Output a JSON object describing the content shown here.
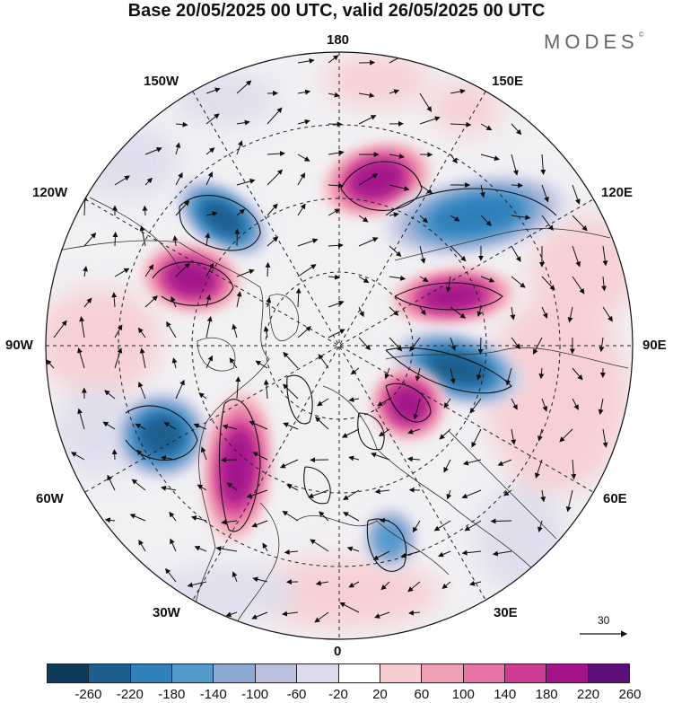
{
  "title": "Base 20/05/2025 00 UTC, valid 26/05/2025 00 UTC",
  "brand": "MODES",
  "brand_mark": "©",
  "longitude_labels": {
    "lon180": "180",
    "lon150w": "150W",
    "lon150e": "150E",
    "lon120w": "120W",
    "lon120e": "120E",
    "lon90w": "90W",
    "lon90e": "90E",
    "lon60w": "60W",
    "lon60e": "60E",
    "lon30w": "30W",
    "lon30e": "30E",
    "lon0": "0"
  },
  "reference_vector": "30",
  "colorbar": {
    "colors": [
      "#0c3b5c",
      "#1d5f8f",
      "#2f80bb",
      "#5399cc",
      "#8ba9d3",
      "#b8c0dd",
      "#dcdced",
      "#ffffff",
      "#f7cdd0",
      "#f0a0b4",
      "#e874a5",
      "#cf3c94",
      "#a3138b",
      "#5c0f7a"
    ],
    "ticks": [
      "-260",
      "-220",
      "-180",
      "-140",
      "-100",
      "-60",
      "-20",
      "20",
      "60",
      "100",
      "140",
      "180",
      "220",
      "260"
    ]
  },
  "anomaly_centers": [
    {
      "name": "low-alaska",
      "sign": "neg",
      "strength": 220
    },
    {
      "name": "high-bering",
      "sign": "pos",
      "strength": 240
    },
    {
      "name": "high-canada-west",
      "sign": "pos",
      "strength": 240
    },
    {
      "name": "low-east-siberia",
      "sign": "neg",
      "strength": 200
    },
    {
      "name": "high-central-siberia",
      "sign": "pos",
      "strength": 180
    },
    {
      "name": "low-west-siberia",
      "sign": "neg",
      "strength": 220
    },
    {
      "name": "high-scandinavia",
      "sign": "pos",
      "strength": 220
    },
    {
      "name": "low-north-atlantic",
      "sign": "neg",
      "strength": 240
    },
    {
      "name": "high-atlantic-ridge",
      "sign": "pos",
      "strength": 200
    },
    {
      "name": "low-europe",
      "sign": "neg",
      "strength": 140
    }
  ]
}
